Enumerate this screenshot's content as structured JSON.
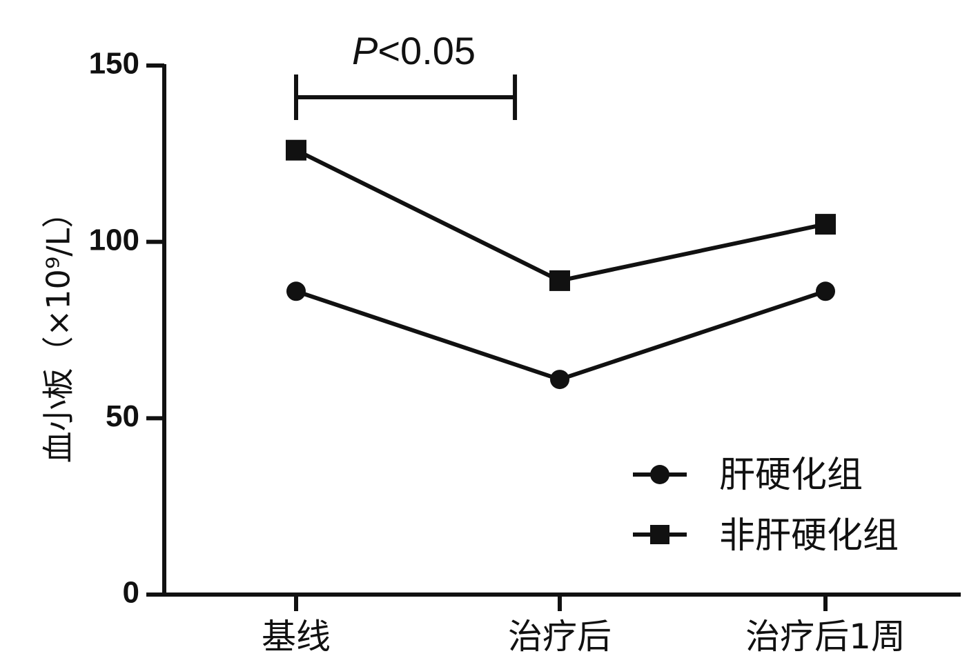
{
  "chart_data": {
    "type": "line",
    "categories": [
      "基线",
      "治疗后",
      "治疗后1周"
    ],
    "series": [
      {
        "name": "肝硬化组",
        "marker": "circle",
        "values": [
          86,
          61,
          86
        ]
      },
      {
        "name": "非肝硬化组",
        "marker": "square",
        "values": [
          126,
          89,
          105
        ]
      }
    ],
    "ylabel": "血小板（×10⁹/L）",
    "xlabel": "",
    "ylim": [
      0,
      150
    ],
    "yticks": [
      "0",
      "50",
      "100",
      "150"
    ],
    "grid": false,
    "legend_position": "bottom-right",
    "annotation": {
      "text_italic": "P",
      "text_rest": "<0.05",
      "bracket_from_category": 0,
      "bracket_to_category": 1,
      "bracket_level": 141
    },
    "colors": {
      "line": "#111111",
      "marker": "#111111"
    }
  }
}
